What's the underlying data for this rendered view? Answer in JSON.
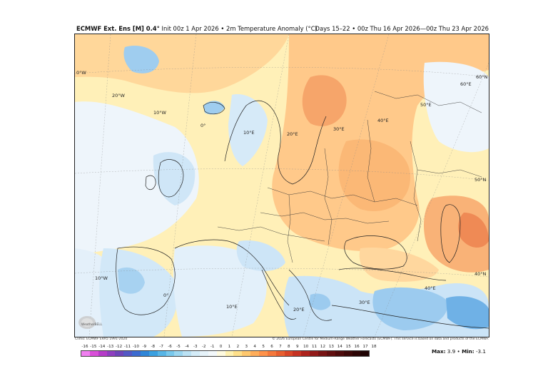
{
  "header": {
    "model": "ECMWF Ext. Ens [M] 0.4°",
    "init": "Init 00z 1 Apr 2026",
    "variable": "2m Temperature Anomaly (°C)",
    "valid": "Days 15–22 • 00z Thu 16 Apr 2026—00z Thu 23 Apr 2026"
  },
  "map_labels": {
    "lon_0w_top": "0°W",
    "lon_20w": "20°W",
    "lon_10w_top": "10°W",
    "lon_0e_top": "0°",
    "lon_10e_top": "10°E",
    "lon_20e_top": "20°E",
    "lon_30e_top": "30°E",
    "lon_40e_top": "40°E",
    "lon_50e_top": "50°E",
    "lon_60e_top": "60°E",
    "lat_60n": "60°N",
    "lat_50n": "50°N",
    "lat_40n": "40°N",
    "lon_10w_bottom": "10°W",
    "lon_0_bottom": "0°",
    "lon_10e_bottom": "10°E",
    "lon_20e_bottom": "20°E",
    "lon_30e_bottom": "30°E",
    "lon_40e_bottom": "40°E"
  },
  "footer": {
    "climo": "Climo: ECMWF ERA5 1991-2020",
    "copyright": "© 2026 European Centre for Medium-Range Weather Forecasts (ECMWF). This service is based on data and products of the ECMWF."
  },
  "logo": {
    "text": "WeatherBELL"
  },
  "colorbar": {
    "ticks": [
      "-16",
      "-15",
      "-14",
      "-13",
      "-12",
      "-11",
      "-10",
      "-9",
      "-8",
      "-7",
      "-6",
      "-5",
      "-4",
      "-3",
      "-2",
      "-1",
      "0",
      "1",
      "2",
      "3",
      "4",
      "5",
      "6",
      "7",
      "8",
      "9",
      "10",
      "11",
      "12",
      "13",
      "14",
      "15",
      "16",
      "17",
      "18"
    ],
    "colors": [
      "#f07ff0",
      "#d94fd9",
      "#b53cc8",
      "#8e3fbf",
      "#6e45b8",
      "#5358c4",
      "#3c6bd0",
      "#2f86d8",
      "#3aa0e0",
      "#57b5e6",
      "#78c8ec",
      "#9bd6f0",
      "#bbe2f4",
      "#d4ecf8",
      "#e6f3fa",
      "#f3f8fb",
      "#fffbe0",
      "#fff1b0",
      "#ffe08a",
      "#ffc86e",
      "#ffad5a",
      "#ff924a",
      "#f5783c",
      "#e85f30",
      "#d94628",
      "#c63222",
      "#ad221c",
      "#921a18",
      "#781414",
      "#620f10",
      "#4e0b0c",
      "#3c0808",
      "#2c0505",
      "#1f0303"
    ]
  },
  "stats": {
    "max_label": "Max:",
    "max_value": "3.9",
    "sep": "•",
    "min_label": "Min:",
    "min_value": "-3.1"
  },
  "colors": {
    "warm_light": "#ffe9a6",
    "warm": "#ffd08a",
    "warm_strong": "#f9a86a",
    "hot": "#f08c58",
    "cool_light": "#eef5fb",
    "cool": "#c9e3f6",
    "cool_strong": "#8ec4ec",
    "cold": "#5fa8e4"
  }
}
